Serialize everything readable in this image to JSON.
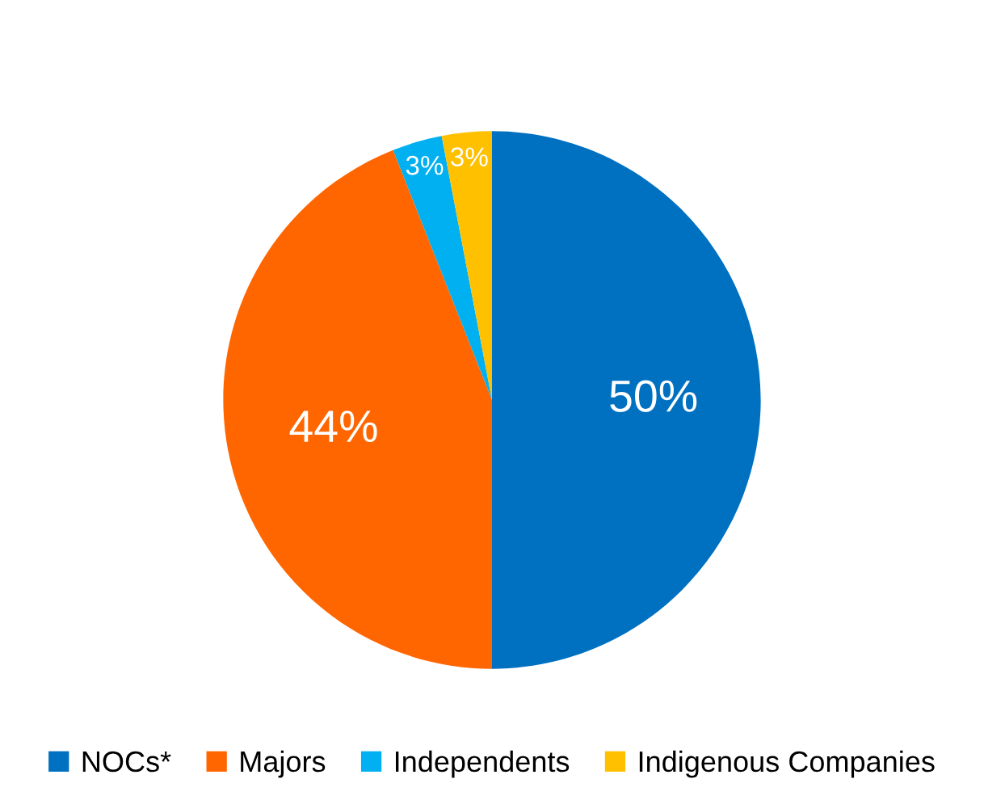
{
  "chart_data": {
    "type": "pie",
    "categories": [
      "NOCs*",
      "Majors",
      "Independents",
      "Indigenous Companies"
    ],
    "values": [
      50,
      44,
      3,
      3
    ],
    "colors": [
      "#0070c0",
      "#ff6600",
      "#00b0f0",
      "#ffc000"
    ],
    "value_labels": [
      "50%",
      "44%",
      "3%",
      "3%"
    ],
    "legend": "bottom"
  }
}
